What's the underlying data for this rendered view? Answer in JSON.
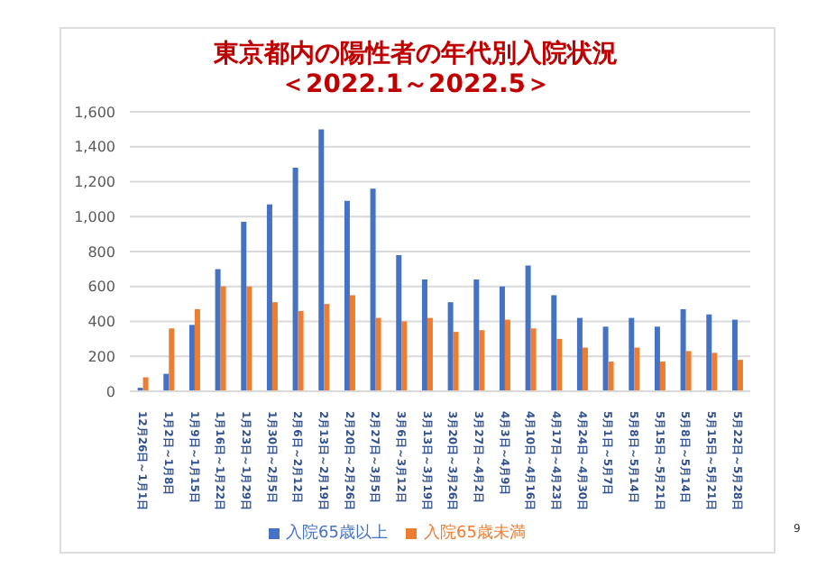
{
  "chart_data": {
    "type": "bar",
    "title": "東京都内の陽性者の年代別入院状況",
    "subtitle": "＜2022.1～2022.5＞",
    "categories": [
      "12月26日～1月1日",
      "1月2日～1月8日",
      "1月9日～1月15日",
      "1月16日～1月22日",
      "1月23日～1月29日",
      "1月30日～2月5日",
      "2月6日～2月12日",
      "2月13日～2月19日",
      "2月20日～2月26日",
      "2月27日～3月5日",
      "3月6日～3月12日",
      "3月13日～3月19日",
      "3月20日～3月26日",
      "3月27日～4月2日",
      "4月3日～4月9日",
      "4月10日～4月16日",
      "4月17日～4月23日",
      "4月24日～4月30日",
      "5月1日～5月7日",
      "5月8日～5月14日",
      "5月15日～5月21日",
      "5月8日～5月14日",
      "5月15日～5月21日",
      "5月22日～5月28日"
    ],
    "series": [
      {
        "name": "入院65歳以上",
        "color": "#4472c4",
        "values": [
          20,
          100,
          380,
          700,
          970,
          1070,
          1280,
          1500,
          1090,
          1160,
          780,
          640,
          510,
          640,
          600,
          720,
          550,
          420,
          370,
          420,
          370,
          470,
          440,
          410
        ]
      },
      {
        "name": "入院65歳未満",
        "color": "#ed7d31",
        "values": [
          80,
          360,
          470,
          600,
          600,
          510,
          460,
          500,
          550,
          420,
          400,
          420,
          340,
          350,
          410,
          360,
          300,
          250,
          170,
          250,
          170,
          230,
          220,
          180
        ]
      }
    ],
    "ylim": [
      0,
      1600
    ],
    "yticks": [
      0,
      {
        "value": 200,
        "label": "200"
      },
      400,
      600,
      800,
      {
        "value": 1000,
        "label": "1,000"
      },
      {
        "value": 1200,
        "label": "1,200"
      },
      {
        "value": 1400,
        "label": "1,400"
      },
      {
        "value": 1600,
        "label": "1,600"
      }
    ],
    "grid": "y",
    "legend": "bottom",
    "annotations": [
      "9"
    ]
  }
}
